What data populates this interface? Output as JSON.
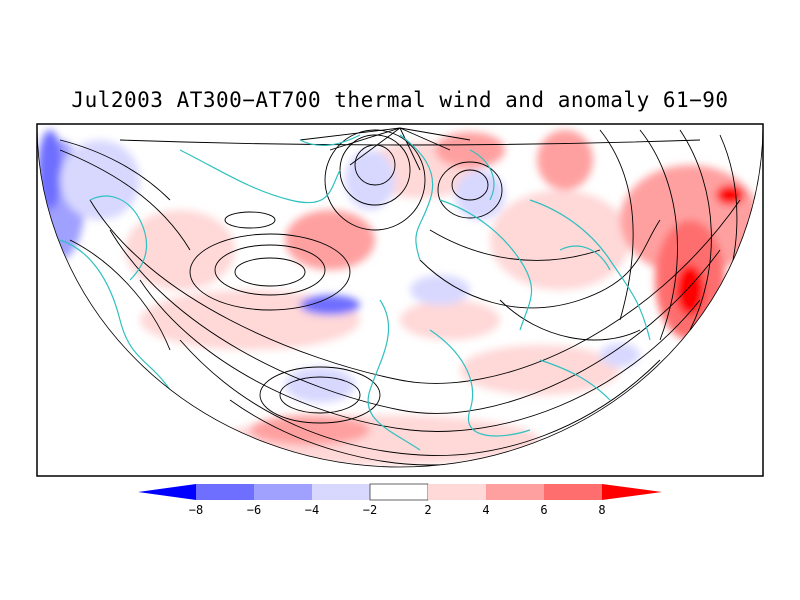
{
  "title": "Jul2003 AT300−AT700 thermal wind and anomaly 61−90",
  "colors": {
    "neg_extreme": "#0000ff",
    "neg_8_6": "#6e6eff",
    "neg_6_4": "#a0a0ff",
    "neg_4_2": "#d8d8ff",
    "neutral": "#ffffff",
    "pos_2_4": "#ffd8d8",
    "pos_4_6": "#ffa0a0",
    "pos_6_8": "#ff6e6e",
    "pos_extreme": "#ff0000",
    "coastline": "#30c0c0",
    "streamline": "#000000"
  },
  "colorbar": {
    "tick_labels": [
      "−8",
      "−6",
      "−4",
      "−2",
      "2",
      "4",
      "6",
      "8"
    ]
  },
  "map": {
    "projection": "polar-stereographic northern hemisphere",
    "layers": [
      "anomaly-shading",
      "streamlines",
      "coastlines"
    ]
  }
}
